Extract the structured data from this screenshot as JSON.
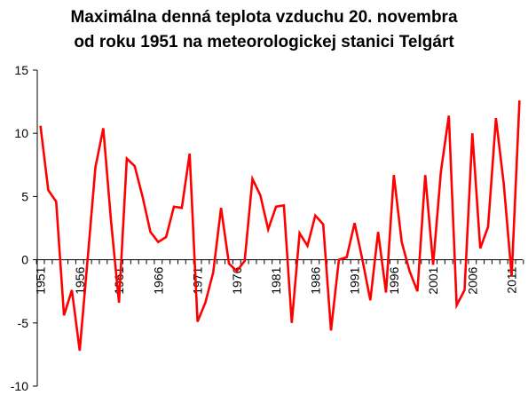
{
  "chart_data": {
    "type": "line",
    "title_lines": [
      "Maximálna denná teplota vzduchu 20. novembra",
      "od roku 1951 na meteorologickej stanici Telgárt"
    ],
    "xlabel": "",
    "ylabel": "",
    "ylim": [
      -10,
      15
    ],
    "yticks": [
      -10,
      -5,
      0,
      5,
      10,
      15
    ],
    "xticks": [
      1951,
      1956,
      1961,
      1966,
      1971,
      1976,
      1981,
      1986,
      1991,
      1996,
      2001,
      2006,
      2011
    ],
    "grid": false,
    "line_color": "#ff0000",
    "x": [
      1951,
      1952,
      1953,
      1954,
      1955,
      1956,
      1957,
      1958,
      1959,
      1960,
      1961,
      1962,
      1963,
      1964,
      1965,
      1966,
      1967,
      1968,
      1969,
      1970,
      1971,
      1972,
      1973,
      1974,
      1975,
      1976,
      1977,
      1978,
      1979,
      1980,
      1981,
      1982,
      1983,
      1984,
      1985,
      1986,
      1987,
      1988,
      1989,
      1990,
      1991,
      1992,
      1993,
      1994,
      1995,
      1996,
      1997,
      1998,
      1999,
      2000,
      2001,
      2002,
      2003,
      2004,
      2005,
      2006,
      2007,
      2008,
      2009,
      2010,
      2011,
      2012
    ],
    "values": [
      10.6,
      5.5,
      4.6,
      -4.4,
      -2.4,
      -7.2,
      0.0,
      7.3,
      10.4,
      3.0,
      -3.4,
      8.0,
      7.4,
      5.0,
      2.2,
      1.4,
      1.8,
      4.2,
      4.1,
      8.4,
      -4.9,
      -3.4,
      -1.0,
      4.1,
      -0.3,
      -0.9,
      -0.1,
      6.4,
      5.1,
      2.4,
      4.2,
      4.3,
      -5.0,
      2.1,
      1.1,
      3.5,
      2.8,
      -5.6,
      0.0,
      0.2,
      2.9,
      0.0,
      -3.2,
      2.2,
      -2.6,
      6.7,
      1.4,
      -0.9,
      -2.5,
      6.7,
      -0.4,
      7.0,
      11.4,
      -3.6,
      -2.4,
      10.0,
      0.9,
      2.6,
      11.2,
      6.0,
      -1.3,
      12.6
    ]
  }
}
